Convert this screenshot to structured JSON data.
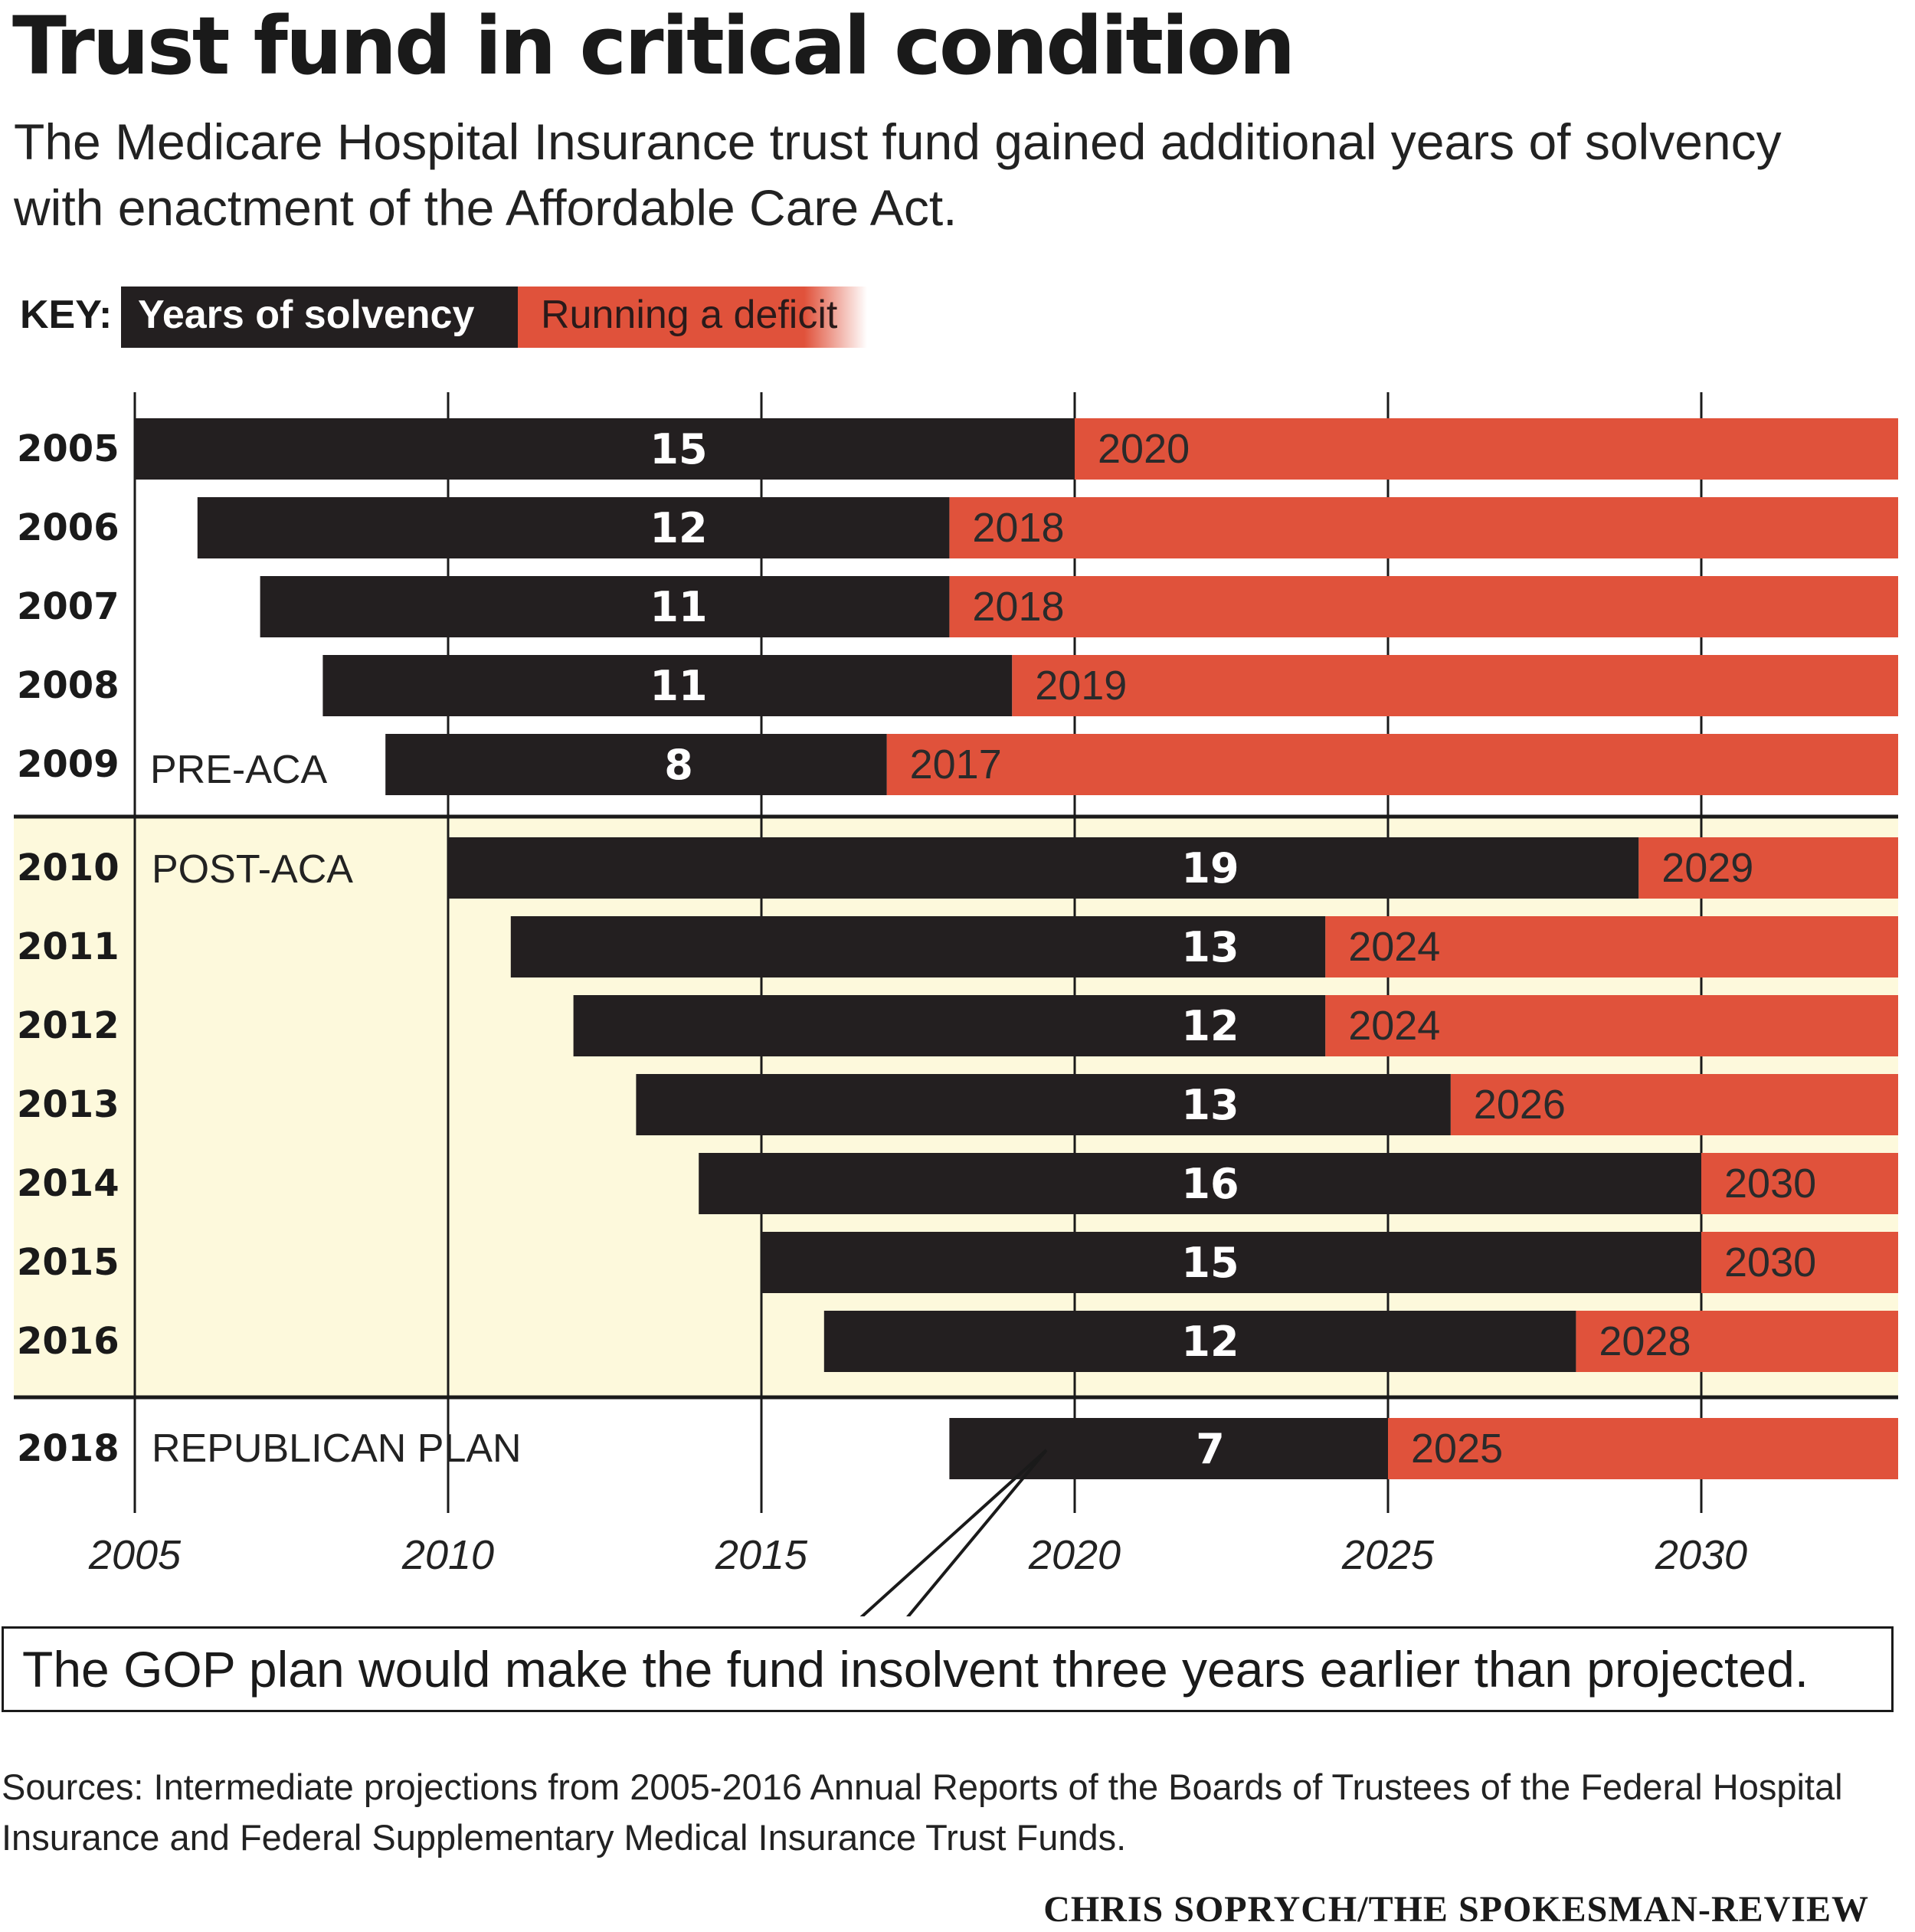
{
  "title": "Trust fund in critical condition",
  "subtitle": "The Medicare Hospital Insurance trust fund gained additional years of solvency with enactment of the Affordable Care Act.",
  "key": {
    "label": "KEY:",
    "solvency": "Years of solvency",
    "deficit": "Running a deficit"
  },
  "colors": {
    "solvency": "#231f20",
    "deficit": "#e0523b",
    "post_aca_bg": "#fdf9dc",
    "text": "#1a1a1a"
  },
  "chart_data": {
    "type": "bar",
    "orientation": "horizontal-range",
    "xlim": [
      2005,
      2033
    ],
    "xticks": [
      "2005",
      "2010",
      "2015",
      "2020",
      "2025",
      "2030"
    ],
    "grid": true,
    "series": [
      {
        "name": "Years of solvency"
      },
      {
        "name": "Running a deficit"
      }
    ],
    "rows": [
      {
        "report_year": "2005",
        "start": 2005,
        "insolvent": 2020,
        "years": "15",
        "end_label": "2020",
        "group": "pre"
      },
      {
        "report_year": "2006",
        "start": 2006,
        "insolvent": 2018,
        "years": "12",
        "end_label": "2018",
        "group": "pre"
      },
      {
        "report_year": "2007",
        "start": 2007,
        "insolvent": 2018,
        "years": "11",
        "end_label": "2018",
        "group": "pre"
      },
      {
        "report_year": "2008",
        "start": 2008,
        "insolvent": 2019,
        "years": "11",
        "end_label": "2019",
        "group": "pre"
      },
      {
        "report_year": "2009",
        "start": 2009,
        "insolvent": 2017,
        "years": "8",
        "end_label": "2017",
        "group": "pre"
      },
      {
        "report_year": "2010",
        "start": 2010,
        "insolvent": 2029,
        "years": "19",
        "end_label": "2029",
        "group": "post"
      },
      {
        "report_year": "2011",
        "start": 2011,
        "insolvent": 2024,
        "years": "13",
        "end_label": "2024",
        "group": "post"
      },
      {
        "report_year": "2012",
        "start": 2012,
        "insolvent": 2024,
        "years": "12",
        "end_label": "2024",
        "group": "post"
      },
      {
        "report_year": "2013",
        "start": 2013,
        "insolvent": 2026,
        "years": "13",
        "end_label": "2026",
        "group": "post"
      },
      {
        "report_year": "2014",
        "start": 2014,
        "insolvent": 2030,
        "years": "16",
        "end_label": "2030",
        "group": "post"
      },
      {
        "report_year": "2015",
        "start": 2015,
        "insolvent": 2030,
        "years": "15",
        "end_label": "2030",
        "group": "post"
      },
      {
        "report_year": "2016",
        "start": 2016,
        "insolvent": 2028,
        "years": "12",
        "end_label": "2028",
        "group": "post"
      },
      {
        "report_year": "2018",
        "start": 2018,
        "insolvent": 2025,
        "years": "7",
        "end_label": "2025",
        "group": "gop"
      }
    ],
    "group_labels": {
      "pre": "PRE-ACA",
      "post": "POST-ACA",
      "gop": "REPUBLICAN PLAN"
    }
  },
  "callout": "The GOP plan would make the fund insolvent three years earlier than projected.",
  "sources": "Sources: Intermediate projections from 2005-2016 Annual Reports of the Boards of Trustees of the Federal Hospital Insurance and Federal Supplementary Medical Insurance Trust Funds.",
  "credit": "CHRIS SOPRYCH/THE SPOKESMAN-REVIEW"
}
